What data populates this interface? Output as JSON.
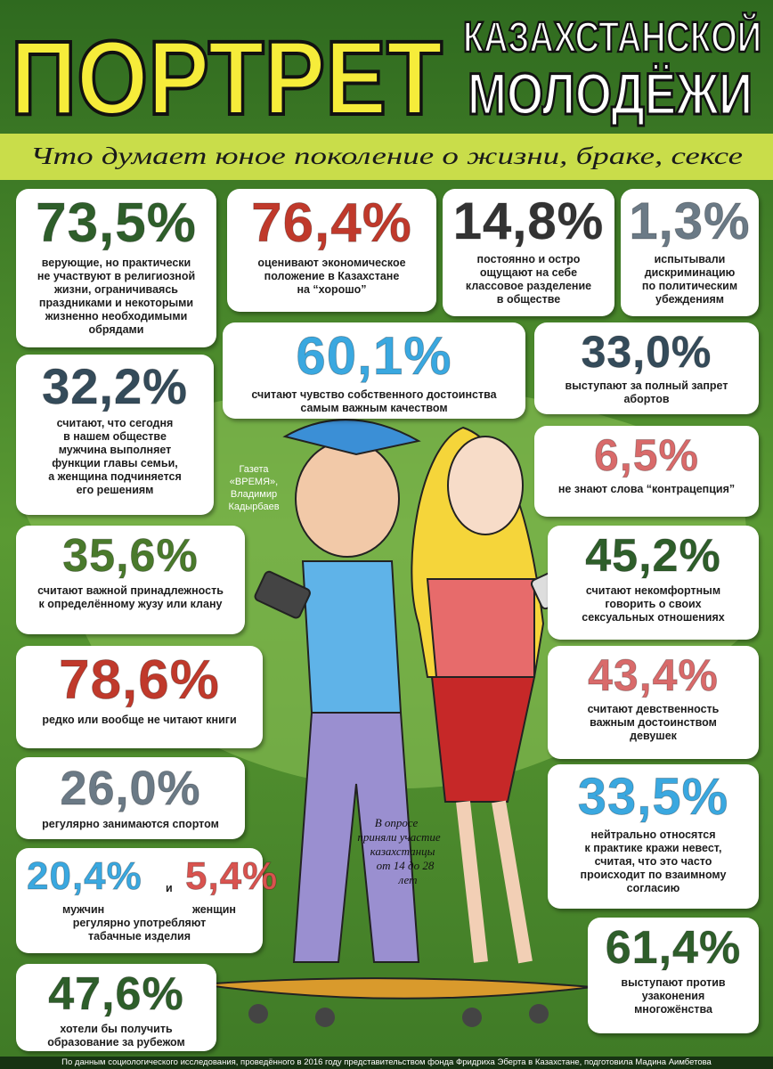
{
  "header": {
    "title": "ПОРТРЕТ",
    "subtitle_lines": [
      "КАЗАХСТАНСКОЙ",
      "МОЛОДЁЖИ"
    ],
    "tagline": "Что думает юное поколение о жизни, браке, сексе"
  },
  "cards": [
    {
      "value": "73,5%",
      "lines": [
        "верующие, но практически",
        "не участвуют в религиозной",
        "жизни, ограничиваясь",
        "праздниками и некоторыми",
        "жизненно необходимыми",
        "обрядами"
      ]
    },
    {
      "value": "76,4%",
      "lines": [
        "оценивают экономическое",
        "положение в Казахстане",
        "на “хорошо”"
      ]
    },
    {
      "value": "14,8%",
      "lines": [
        "постоянно и остро",
        "ощущают на себе",
        "классовое разделение",
        "в обществе"
      ]
    },
    {
      "value": "1,3%",
      "lines": [
        "испытывали",
        "дискриминацию",
        "по политическим",
        "убеждениям"
      ]
    },
    {
      "value": "60,1%",
      "lines": [
        "считают чувство собственного достоинства",
        "самым важным качеством"
      ]
    },
    {
      "value": "33,0%",
      "lines": [
        "выступают за полный запрет",
        "абортов"
      ]
    },
    {
      "value": "32,2%",
      "lines": [
        "считают, что сегодня",
        "в нашем обществе",
        "мужчина выполняет",
        "функции главы семьи,",
        "а женщина подчиняется",
        "его решениям"
      ]
    },
    {
      "value": "6,5%",
      "lines": [
        "не знают слова “контрацепция”"
      ]
    },
    {
      "value": "35,6%",
      "lines": [
        "считают важной принадлежность",
        "к определённому жузу или клану"
      ]
    },
    {
      "value": "45,2%",
      "lines": [
        "считают некомфортным",
        "говорить о своих",
        "сексуальных отношениях"
      ]
    },
    {
      "value": "78,6%",
      "lines": [
        "редко или вообще не читают книги"
      ]
    },
    {
      "value": "43,4%",
      "lines": [
        "считают девственность",
        "важным достоинством",
        "девушек"
      ]
    },
    {
      "value": "26,0%",
      "lines": [
        "регулярно занимаются спортом"
      ]
    },
    {
      "value": "33,5%",
      "lines": [
        "нейтрально относятся",
        "к практике кражи невест,",
        "считая, что это часто",
        "происходит по взаимному",
        "согласию"
      ]
    },
    {
      "value": "47,6%",
      "lines": [
        "хотели бы получить",
        "образование за рубежом"
      ]
    },
    {
      "value": "61,4%",
      "lines": [
        "выступают против",
        "узаконения",
        "многожёнства"
      ]
    }
  ],
  "tobacco": {
    "men_value": "20,4%",
    "conjunction": "и",
    "women_value": "5,4%",
    "men_label": "мужчин",
    "women_label": "женщин",
    "lines": [
      "регулярно употребляют",
      "табачные изделия"
    ]
  },
  "credit": [
    "Газета",
    "«ВРЕМЯ»,",
    "Владимир",
    "Кадырбаев"
  ],
  "survey_note": [
    "В опросе",
    "приняли участие",
    "казахстанцы",
    "от 14 до 28",
    "лет"
  ],
  "footer": "По данным социологического исследования, проведённого в 2016 году представительством фонда Фридриха Эберта в Казахстане, подготовила Мадина Аимбетова"
}
